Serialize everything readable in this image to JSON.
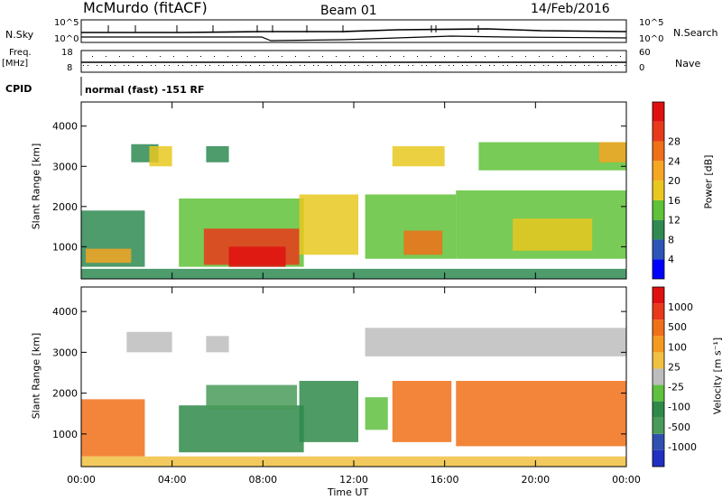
{
  "header": {
    "station": "McMurdo (fitACF)",
    "beam": "Beam 01",
    "date": "14/Feb/2016"
  },
  "top_panels": {
    "nsky_label": "N.Sky",
    "nsearch_label": "N.Search",
    "freq_label": "Freq.",
    "freq_unit": "[MHz]",
    "nave_label": "Nave",
    "cpid_label": "CPID",
    "cpid_text": "normal (fast) -151 RF",
    "noise_ticks_left": [
      "10^5",
      "10^0"
    ],
    "noise_ticks_right": [
      "10^5",
      "10^0"
    ],
    "freq_ticks": [
      "18",
      "8"
    ],
    "nave_ticks": [
      "60",
      "0"
    ]
  },
  "chart_data": [
    {
      "type": "heatmap",
      "name": "power",
      "xlabel": "",
      "ylabel": "Slant Range [km]",
      "xlim": [
        0,
        24
      ],
      "ylim": [
        200,
        4600
      ],
      "y_ticks": [
        "1000",
        "2000",
        "3000",
        "4000"
      ],
      "colorbar_label": "Power [dB]",
      "colorbar_ticks": [
        "4",
        "8",
        "12",
        "16",
        "20",
        "24",
        "28"
      ],
      "colorbar_colors": [
        "#0000ff",
        "#2c55b7",
        "#2f8a52",
        "#5fc238",
        "#e8c820",
        "#f5a623",
        "#f07018",
        "#e83a1a",
        "#e01010"
      ],
      "regions": [
        {
          "t0": 0.0,
          "t1": 2.8,
          "r0": 500,
          "r1": 1900,
          "level": 2
        },
        {
          "t0": 0.2,
          "t1": 2.2,
          "r0": 600,
          "r1": 950,
          "level": 5
        },
        {
          "t0": 4.3,
          "t1": 9.8,
          "r0": 500,
          "r1": 2200,
          "level": 3
        },
        {
          "t0": 5.4,
          "t1": 9.6,
          "r0": 550,
          "r1": 1450,
          "level": 7
        },
        {
          "t0": 6.5,
          "t1": 9.0,
          "r0": 500,
          "r1": 1000,
          "level": 8
        },
        {
          "t0": 9.6,
          "t1": 12.2,
          "r0": 800,
          "r1": 2300,
          "level": 4
        },
        {
          "t0": 12.5,
          "t1": 16.5,
          "r0": 700,
          "r1": 2300,
          "level": 3
        },
        {
          "t0": 14.2,
          "t1": 15.9,
          "r0": 800,
          "r1": 1400,
          "level": 6
        },
        {
          "t0": 16.5,
          "t1": 24.0,
          "r0": 700,
          "r1": 2400,
          "level": 3
        },
        {
          "t0": 19.0,
          "t1": 22.5,
          "r0": 900,
          "r1": 1700,
          "level": 4
        },
        {
          "t0": 2.2,
          "t1": 3.4,
          "r0": 3100,
          "r1": 3550,
          "level": 2
        },
        {
          "t0": 3.0,
          "t1": 4.0,
          "r0": 3000,
          "r1": 3500,
          "level": 4
        },
        {
          "t0": 5.5,
          "t1": 6.5,
          "r0": 3100,
          "r1": 3500,
          "level": 2
        },
        {
          "t0": 13.7,
          "t1": 16.0,
          "r0": 3000,
          "r1": 3500,
          "level": 4
        },
        {
          "t0": 17.5,
          "t1": 24.0,
          "r0": 2900,
          "r1": 3600,
          "level": 3
        },
        {
          "t0": 22.8,
          "t1": 24.0,
          "r0": 3100,
          "r1": 3600,
          "level": 5
        },
        {
          "t0": 0.0,
          "t1": 24.0,
          "r0": 200,
          "r1": 450,
          "level": 2
        }
      ]
    },
    {
      "type": "heatmap",
      "name": "velocity",
      "xlabel": "Time UT",
      "ylabel": "Slant Range [km]",
      "xlim": [
        0,
        24
      ],
      "ylim": [
        200,
        4600
      ],
      "x_ticks": [
        "00:00",
        "04:00",
        "08:00",
        "12:00",
        "16:00",
        "20:00",
        "00:00"
      ],
      "y_ticks": [
        "1000",
        "2000",
        "3000",
        "4000"
      ],
      "colorbar_label": "Velocity [m s⁻¹]",
      "colorbar_ticks": [
        "1000",
        "500",
        "100",
        "25",
        "-25",
        "-100",
        "-500",
        "-1000"
      ],
      "colorbar_colors": [
        "#2030c0",
        "#3050b0",
        "#4a9a5a",
        "#2f8a4a",
        "#60c040",
        "#bdbdbd",
        "#f0c040",
        "#f59a20",
        "#f07018",
        "#e83a1a",
        "#e01010"
      ],
      "regions": [
        {
          "t0": 0.0,
          "t1": 2.8,
          "r0": 450,
          "r1": 1850,
          "level": 8
        },
        {
          "t0": 4.3,
          "t1": 9.8,
          "r0": 550,
          "r1": 1700,
          "level": 3
        },
        {
          "t0": 5.5,
          "t1": 9.5,
          "r0": 1600,
          "r1": 2200,
          "level": 2
        },
        {
          "t0": 9.6,
          "t1": 12.2,
          "r0": 800,
          "r1": 2300,
          "level": 3
        },
        {
          "t0": 12.5,
          "t1": 13.5,
          "r0": 1100,
          "r1": 1900,
          "level": 4
        },
        {
          "t0": 13.7,
          "t1": 16.3,
          "r0": 800,
          "r1": 2300,
          "level": 8
        },
        {
          "t0": 16.5,
          "t1": 24.0,
          "r0": 700,
          "r1": 2300,
          "level": 8
        },
        {
          "t0": 12.5,
          "t1": 24.0,
          "r0": 2900,
          "r1": 3600,
          "level": 5
        },
        {
          "t0": 2.0,
          "t1": 4.0,
          "r0": 3000,
          "r1": 3500,
          "level": 5
        },
        {
          "t0": 5.5,
          "t1": 6.5,
          "r0": 3000,
          "r1": 3400,
          "level": 5
        },
        {
          "t0": 0.0,
          "t1": 24.0,
          "r0": 200,
          "r1": 450,
          "level": 6
        }
      ]
    }
  ]
}
